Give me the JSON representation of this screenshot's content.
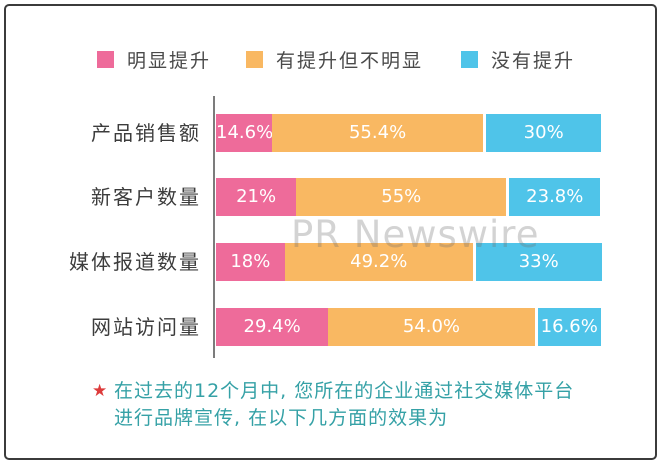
{
  "legend": {
    "items": [
      {
        "label": "明显提升",
        "color": "#ee6b9a"
      },
      {
        "label": "有提升但不明显",
        "color": "#f9b862"
      },
      {
        "label": "没有提升",
        "color": "#4fc4e9"
      }
    ]
  },
  "watermark_text": "PR Newswire",
  "footnote": {
    "star": "★",
    "line1": "在过去的12个月中, 您所在的企业通过社交媒体平台",
    "line2": "进行品牌宣传, 在以下几方面的效果为"
  },
  "colors": {
    "series_significant": "#ee6b9a",
    "series_slight": "#f9b862",
    "series_none": "#4fc4e9",
    "axis": "#7c7c7c",
    "footnote_text": "#35a1a6",
    "star": "#dd3b3b",
    "value_label": "#ffffff"
  },
  "chart_data": {
    "type": "bar",
    "orientation": "horizontal",
    "stacked": true,
    "categories": [
      "产品销售额",
      "新客户数量",
      "媒体报道数量",
      "网站访问量"
    ],
    "series": [
      {
        "name": "明显提升",
        "color": "#ee6b9a",
        "values": [
          14.6,
          21,
          18,
          29.4
        ],
        "data_labels": [
          "14.6%",
          "21%",
          "18%",
          "29.4%"
        ]
      },
      {
        "name": "有提升但不明显",
        "color": "#f9b862",
        "values": [
          55.4,
          55,
          49.2,
          54.0
        ],
        "data_labels": [
          "55.4%",
          "55%",
          "49.2%",
          "54.0%"
        ]
      },
      {
        "name": "没有提升",
        "color": "#4fc4e9",
        "values": [
          30,
          23.8,
          33,
          16.6
        ],
        "data_labels": [
          "30%",
          "23.8%",
          "33%",
          "16.6%"
        ]
      }
    ],
    "xlim": [
      0,
      100
    ],
    "legend_position": "top",
    "grid": false,
    "value_label_color": "#ffffff"
  }
}
